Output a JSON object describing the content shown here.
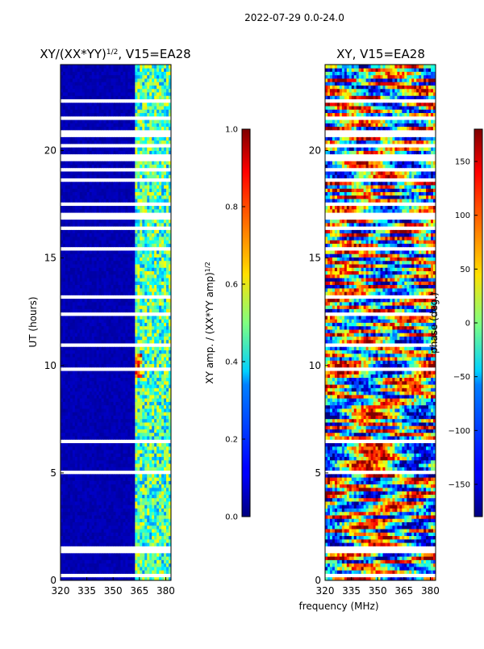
{
  "chart_data": [
    {
      "type": "heatmap",
      "suptitle": "2022-07-29 0.0-24.0",
      "title": "XY/(XX*YY)",
      "title_exponent": "1/2",
      "title_suffix": ", V15=EA28",
      "xlabel": "",
      "ylabel": "UT (hours)",
      "xlim": [
        320,
        383
      ],
      "ylim": [
        0,
        24
      ],
      "xticks": [
        320,
        335,
        350,
        365,
        380
      ],
      "yticks": [
        0,
        5,
        10,
        15,
        20
      ],
      "colormap": "jet",
      "colorbar": {
        "label": "XY amp. / (XX*YY amp)",
        "label_exponent": "1/2",
        "range": [
          0.0,
          1.0
        ],
        "ticks": [
          "0.0",
          "0.2",
          "0.4",
          "0.6",
          "0.8",
          "1.0"
        ]
      },
      "description": "Mostly low amplitude (~0.05) below ~362 MHz; elevated amplitude (~0.3-0.6) in vertical bands between ~362 and ~383 MHz, peaking (~0.75) near 362-366 MHz around 9.5-10.5 UT; white (flagged) horizontal gaps throughout",
      "band_features": [
        {
          "freq_range": [
            320,
            362
          ],
          "typical_value": 0.05
        },
        {
          "freq_range": [
            362,
            383
          ],
          "typical_value": 0.45
        },
        {
          "freq_range": [
            362,
            366
          ],
          "ut_range": [
            9.5,
            10.5
          ],
          "typical_value": 0.75
        }
      ]
    },
    {
      "type": "heatmap",
      "title": "XY, V15=EA28",
      "xlabel": "frequency (MHz)",
      "ylabel": "",
      "xlim": [
        320,
        383
      ],
      "ylim": [
        0,
        24
      ],
      "xticks": [
        320,
        335,
        350,
        365,
        380
      ],
      "yticks": [
        0,
        5,
        10,
        15,
        20
      ],
      "colormap": "jet",
      "colorbar": {
        "label": "phase (deg.)",
        "range": [
          -180,
          180
        ],
        "ticks": [
          "−150",
          "−100",
          "−50",
          "0",
          "50",
          "100",
          "150"
        ]
      },
      "description": "Phase varies across the full -180 to 180 range; noisy striped structure with horizontal banding and diagonal fringes, white (flagged) horizontal gaps throughout",
      "band_features": []
    }
  ]
}
